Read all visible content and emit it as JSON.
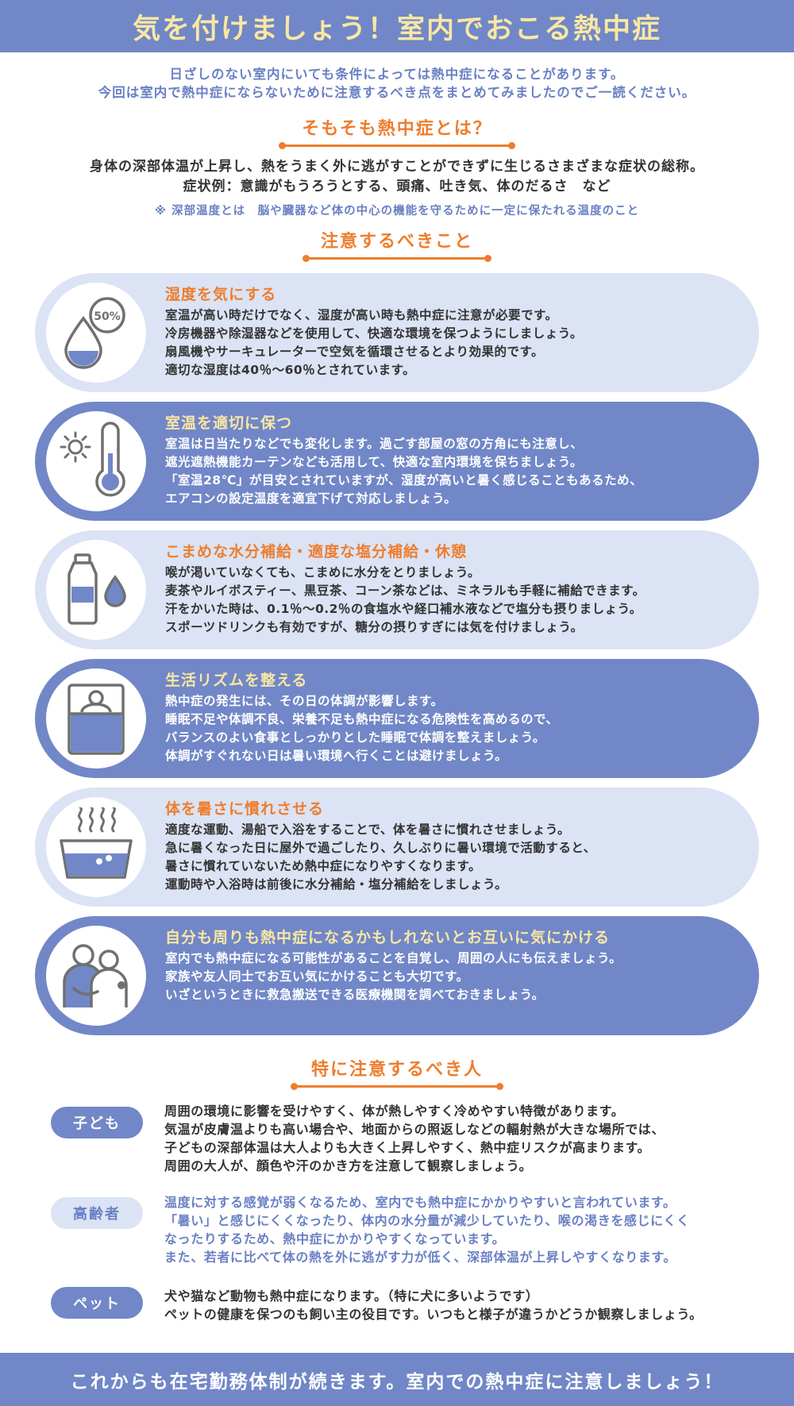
{
  "header": {
    "title": "気を付けましょう！室内でおこる熱中症"
  },
  "intro": {
    "line1": "日ざしのない室内にいても条件によっては熱中症になることがあります。",
    "line2": "今回は室内で熱中症にならないために注意するべき点をまとめてみましたのでご一読ください。"
  },
  "definition": {
    "title": "そもそも熱中症とは？",
    "line1": "身体の深部体温が上昇し、熱をうまく外に逃がすことができずに生じるさまざまな症状の総称。",
    "line2": "症状例：意識がもうろうとする、頭痛、吐き気、体のだるさ　など",
    "note": "※ 深部温度とは　脳や臓器など体の中心の機能を守るために一定に保たれる温度のこと"
  },
  "cautions": {
    "title": "注意するべきこと",
    "items": [
      {
        "icon": "water-drop-humidity-icon",
        "icon_text": "50%",
        "title": "湿度を気にする",
        "lines": [
          "室温が高い時だけでなく、湿度が高い時も熱中症に注意が必要です。",
          "冷房機器や除湿器などを使用して、快適な環境を保つようにしましょう。",
          "扇風機やサーキュレーターで空気を循環させるとより効果的です。",
          "適切な湿度は40％～60％とされています。"
        ]
      },
      {
        "icon": "sun-thermometer-icon",
        "title": "室温を適切に保つ",
        "lines": [
          "室温は日当たりなどでも変化します。過ごす部屋の窓の方角にも注意し、",
          "遮光遮熱機能カーテンなども活用して、快適な室内環境を保ちましょう。",
          "「室温28℃」が目安とされていますが、湿度が高いと暑く感じることもあるため、",
          "エアコンの設定温度を適宜下げて対応しましょう。"
        ]
      },
      {
        "icon": "water-bottle-icon",
        "title": "こまめな水分補給・適度な塩分補給・休憩",
        "lines": [
          "喉が渇いていなくても、こまめに水分をとりましょう。",
          "麦茶やルイボスティー、黒豆茶、コーン茶などは、ミネラルも手軽に補給できます。",
          "汗をかいた時は、0.1％～0.2％の食塩水や経口補水液などで塩分も摂りましょう。",
          "スポーツドリンクも有効ですが、糖分の摂りすぎには気を付けましょう。"
        ]
      },
      {
        "icon": "bed-sleep-icon",
        "title": "生活リズムを整える",
        "lines": [
          "熱中症の発生には、その日の体調が影響します。",
          "睡眠不足や体調不良、栄養不足も熱中症になる危険性を高めるので、",
          "バランスのよい食事としっかりとした睡眠で体調を整えましょう。",
          "体調がすぐれない日は暑い環境へ行くことは避けましょう。"
        ]
      },
      {
        "icon": "bath-tub-icon",
        "title": "体を暑さに慣れさせる",
        "lines": [
          "適度な運動、湯船で入浴をすることで、体を暑さに慣れさせましょう。",
          "急に暑くなった日に屋外で過ごしたり、久しぶりに暑い環境で活動すると、",
          "暑さに慣れていないため熱中症になりやすくなります。",
          "運動時や入浴時は前後に水分補給・塩分補給をしましょう。"
        ]
      },
      {
        "icon": "people-care-icon",
        "title": "自分も周りも熱中症になるかもしれないとお互いに気にかける",
        "lines": [
          "室内でも熱中症になる可能性があることを自覚し、周囲の人にも伝えましょう。",
          "家族や友人同士でお互い気にかけることも大切です。",
          "いざというときに救急搬送できる医療機関を調べておきましょう。"
        ]
      }
    ]
  },
  "people": {
    "title": "特に注意するべき人",
    "items": [
      {
        "label": "子ども",
        "lines": [
          "周囲の環境に影響を受けやすく、体が熱しやすく冷めやすい特徴があります。",
          "気温が皮膚温よりも高い場合や、地面からの照返しなどの輻射熱が大きな場所では、",
          "子どもの深部体温は大人よりも大きく上昇しやすく、熱中症リスクが高まります。",
          "周囲の大人が、顔色や汗のかき方を注意して観察しましょう。"
        ]
      },
      {
        "label": "高齢者",
        "lines": [
          "温度に対する感覚が弱くなるため、室内でも熱中症にかかりやすいと言われています。",
          "「暑い」と感じにくくなったり、体内の水分量が減少していたり、喉の渇きを感じにくく",
          "なったりするため、熱中症にかかりやすくなっています。",
          "また、若者に比べて体の熱を外に逃がす力が低く、深部体温が上昇しやすくなります。"
        ]
      },
      {
        "label": "ペット",
        "lines": [
          "犬や猫など動物も熱中症になります。（特に犬に多いようです）",
          "ペットの健康を保つのも飼い主の役目です。いつもと様子が違うかどうか観察しましょう。"
        ]
      }
    ]
  },
  "footer": {
    "text": "これからも在宅勤務体制が続きます。室内での熱中症に注意しましょう！"
  },
  "colors": {
    "primary_blue": "#7187c7",
    "light_blue": "#dbe3f4",
    "accent_orange": "#ee7d2e",
    "accent_yellow": "#f9e7a3",
    "icon_gray": "#707070"
  }
}
